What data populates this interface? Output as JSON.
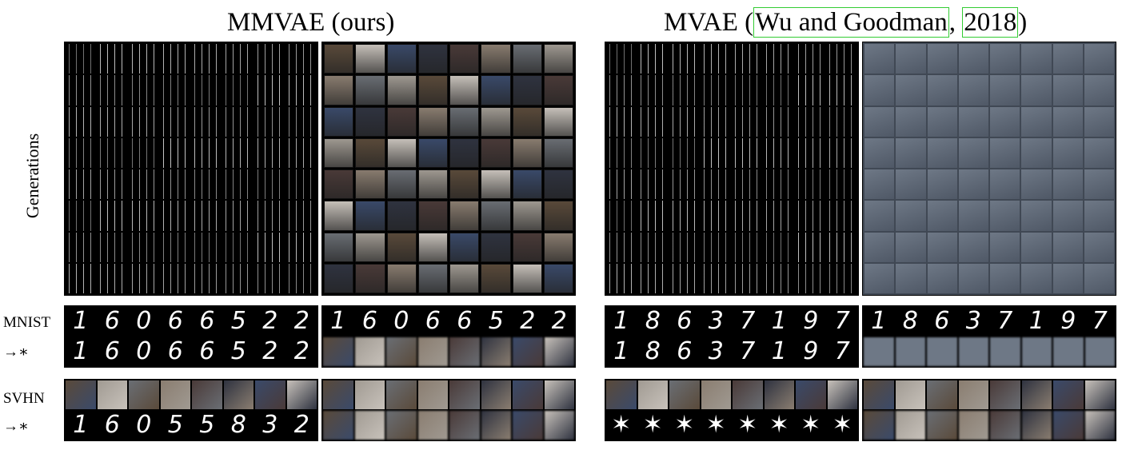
{
  "titles": {
    "left": "MMVAE (ours)",
    "right_prefix": "MVAE (",
    "right_cite_authors": "Wu and Goodman",
    "right_sep": ", ",
    "right_cite_year": "2018",
    "right_suffix": ")"
  },
  "labels": {
    "generations": "Generations",
    "mnist": "MNIST",
    "svhn": "SVHN",
    "arrow": "→∗"
  },
  "digits": {
    "mmvae_mnist": [
      "1",
      "6",
      "0",
      "6",
      "6",
      "5",
      "2",
      "2"
    ],
    "mvae_mnist": [
      "1",
      "8",
      "6",
      "3",
      "7",
      "1",
      "9",
      "7"
    ],
    "mmvae_svhn_to_mnist": [
      "1",
      "6",
      "0",
      "5",
      "5",
      "8",
      "3",
      "2"
    ],
    "mvae_svhn_to_mnist": [
      "✶",
      "✶",
      "✶",
      "✶",
      "✶",
      "✶",
      "✶",
      "✶"
    ]
  },
  "colors": {
    "citation_box": "#33cc33",
    "mnist_bg": "#000000",
    "svhn_palette": [
      "#5a4a3a",
      "#8a7d70",
      "#3a4a6a",
      "#a09a92",
      "#4a3a38",
      "#c8c2bb",
      "#6a6e74",
      "#2f3340"
    ],
    "mvae_svhn_tile": "#6e7886"
  }
}
